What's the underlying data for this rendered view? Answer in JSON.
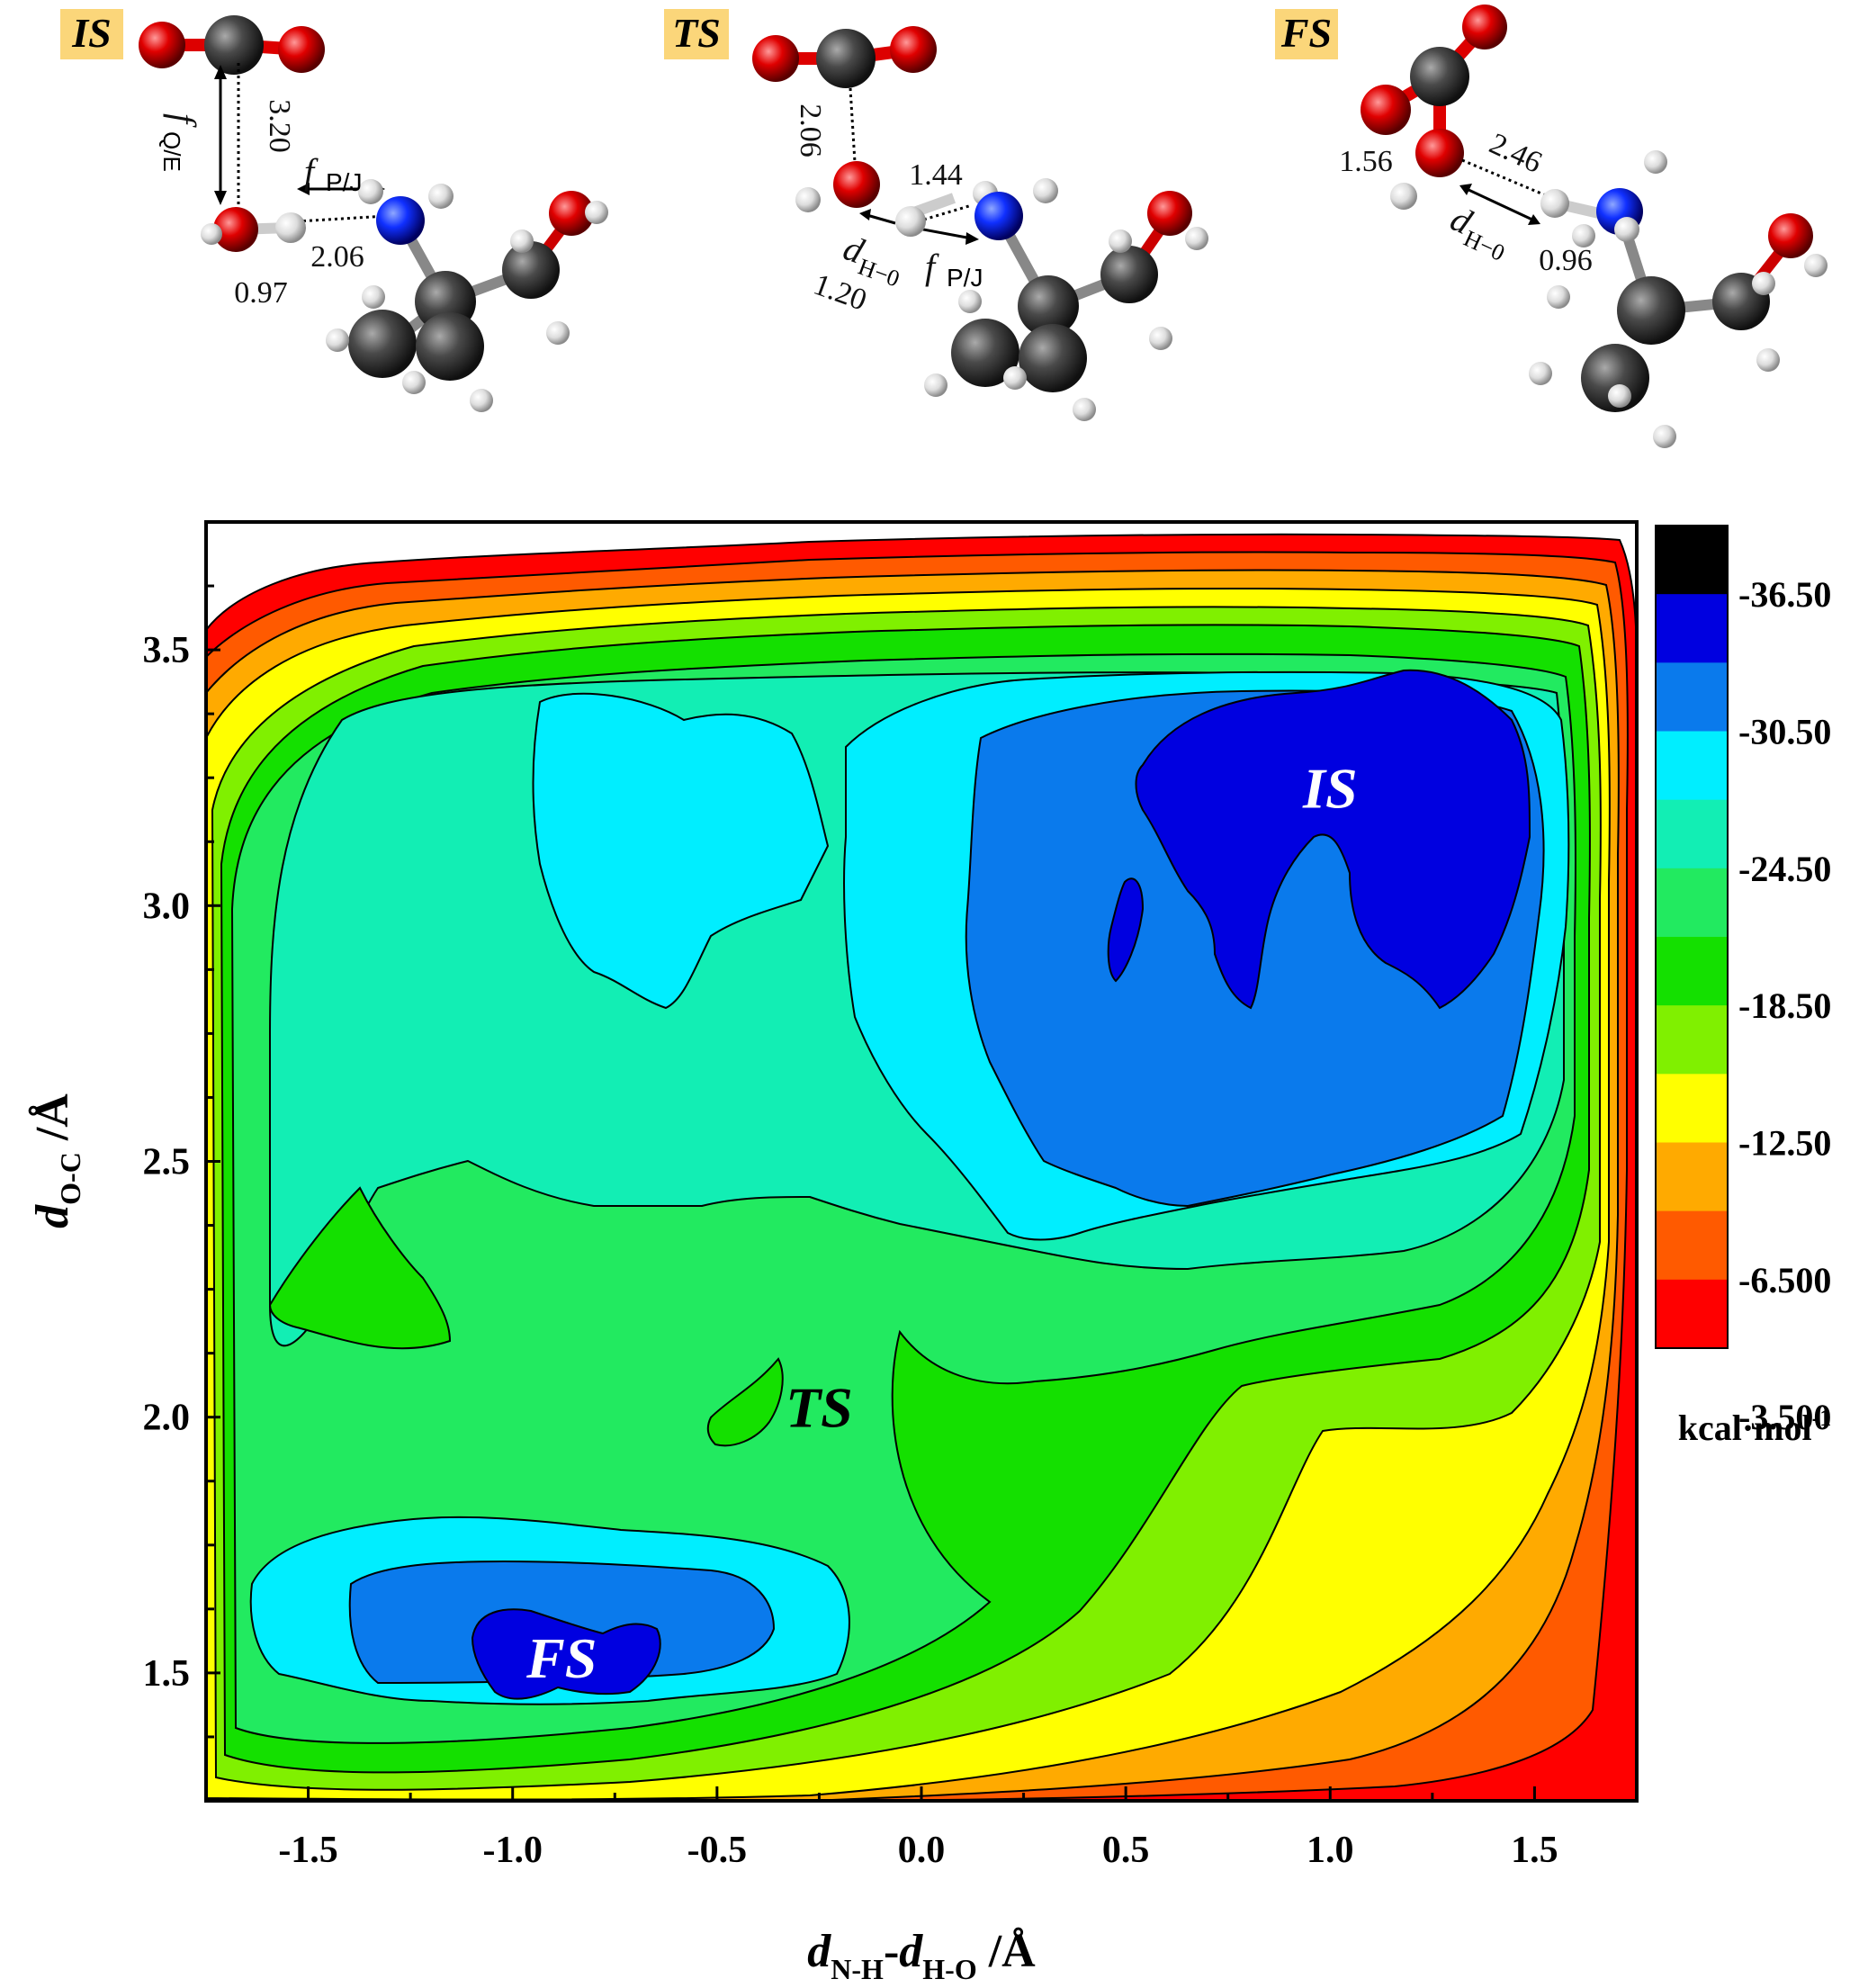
{
  "panels": [
    {
      "label": "IS",
      "distances": [
        "3.20",
        "2.06",
        "0.97"
      ],
      "symbols": [
        "f",
        "Q/E",
        "f",
        "P/J"
      ]
    },
    {
      "label": "TS",
      "distances": [
        "2.06",
        "1.44",
        "1.20"
      ],
      "symbols": [
        "d",
        "H−0",
        "f",
        "P/J"
      ]
    },
    {
      "label": "FS",
      "distances": [
        "1.56",
        "2.46",
        "0.96"
      ],
      "symbols": [
        "d",
        "H−0"
      ]
    }
  ],
  "chart_data": {
    "type": "heatmap",
    "subtype": "filled-contour free-energy surface",
    "x_axis": {
      "label_main1": "d",
      "label_sub1": "N-H",
      "label_mid": "-",
      "label_main2": "d",
      "label_sub2": "H-O",
      "label_unit": " /Å",
      "range": [
        -1.75,
        1.75
      ],
      "ticks": [
        -1.5,
        -1.0,
        -0.5,
        0.0,
        0.5,
        1.0,
        1.5
      ],
      "tick_labels": [
        "-1.5",
        "-1.0",
        "-0.5",
        "0.0",
        "0.5",
        "1.0",
        "1.5"
      ]
    },
    "y_axis": {
      "label_main": "d",
      "label_sub": "O-C",
      "label_unit": "  /Å",
      "range": [
        1.25,
        3.75
      ],
      "ticks": [
        1.5,
        2.0,
        2.5,
        3.0,
        3.5
      ],
      "tick_labels": [
        "1.5",
        "2.0",
        "2.5",
        "3.0",
        "3.5"
      ]
    },
    "colorbar": {
      "unit_main": "kcal·mol",
      "unit_sup": "-1",
      "levels": [
        {
          "value": -39.5,
          "color": "#000000"
        },
        {
          "value": -36.5,
          "color": "#0000e0"
        },
        {
          "value": -33.5,
          "color": "#0a7aec"
        },
        {
          "value": -30.5,
          "color": "#00eeff"
        },
        {
          "value": -27.5,
          "color": "#12eeb4"
        },
        {
          "value": -24.5,
          "color": "#22ea60"
        },
        {
          "value": -21.5,
          "color": "#14e000"
        },
        {
          "value": -18.5,
          "color": "#80f000"
        },
        {
          "value": -15.5,
          "color": "#ffff00"
        },
        {
          "value": -12.5,
          "color": "#ffaa00"
        },
        {
          "value": -9.5,
          "color": "#ff5a00"
        },
        {
          "value": -6.5,
          "color": "#ff0000"
        }
      ],
      "tick_labels": [
        "-36.50",
        "-30.50",
        "-24.50",
        "-18.50",
        "-12.50",
        "-6.500",
        "-3.500"
      ]
    },
    "minima": [
      {
        "name": "IS",
        "x": 1.0,
        "y": 3.23,
        "value_range": "< -36.5"
      },
      {
        "name": "FS",
        "x": -0.88,
        "y": 1.53,
        "value_range": "< -36.5"
      },
      {
        "name": "TS",
        "x": -0.25,
        "y": 2.02
      }
    ],
    "grid": false
  }
}
